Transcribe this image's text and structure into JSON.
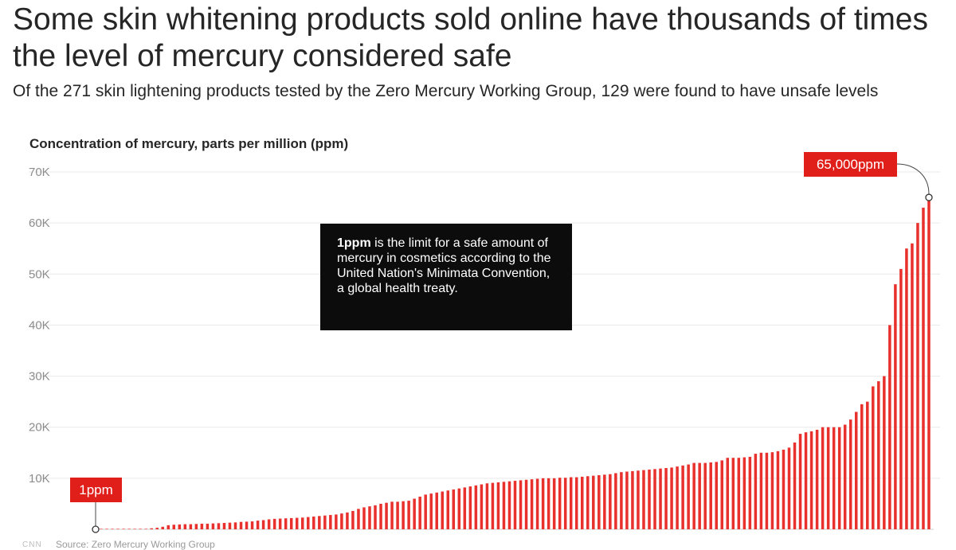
{
  "header": {
    "title": "Some skin whitening products sold online have thousands of times the level of mercury considered safe",
    "subtitle": "Of the 271 skin lightening products tested by the Zero Mercury Working Group, 129 were found to have unsafe levels"
  },
  "footer": {
    "logo": "CNN",
    "source": "Source: Zero Mercury Working Group"
  },
  "colors": {
    "bar": "#e8312d",
    "label_bg": "#e01e1a",
    "grid": "#e9e9e9",
    "tick_text": "#8c8c8c",
    "note_bg": "#0c0c0c"
  },
  "chart_data": {
    "type": "bar",
    "title": "Some skin whitening products sold online have thousands of times the level of mercury considered safe",
    "ylabel": "Concentration of mercury, parts per million (ppm)",
    "xlabel": "",
    "ylim": [
      0,
      70000
    ],
    "yticks": [
      {
        "value": 10000,
        "label": "10K"
      },
      {
        "value": 20000,
        "label": "20K"
      },
      {
        "value": 30000,
        "label": "30K"
      },
      {
        "value": 40000,
        "label": "40K"
      },
      {
        "value": 50000,
        "label": "50K"
      },
      {
        "value": 60000,
        "label": "60K"
      },
      {
        "value": 70000,
        "label": "70K"
      }
    ],
    "grid": true,
    "values": [
      1,
      1,
      1,
      1,
      1,
      1,
      1,
      1,
      1,
      1,
      200,
      300,
      500,
      800,
      900,
      950,
      1000,
      1000,
      1050,
      1100,
      1100,
      1150,
      1200,
      1250,
      1300,
      1350,
      1450,
      1500,
      1550,
      1700,
      1800,
      1950,
      2050,
      2100,
      2150,
      2200,
      2250,
      2300,
      2400,
      2500,
      2600,
      2700,
      2800,
      2900,
      3100,
      3300,
      3600,
      4000,
      4300,
      4500,
      4700,
      5000,
      5200,
      5400,
      5400,
      5500,
      5600,
      6000,
      6400,
      6800,
      7000,
      7200,
      7400,
      7600,
      7800,
      8000,
      8200,
      8400,
      8600,
      8800,
      9000,
      9100,
      9200,
      9300,
      9400,
      9500,
      9600,
      9700,
      9800,
      9900,
      10000,
      10000,
      10000,
      10100,
      10100,
      10200,
      10200,
      10300,
      10400,
      10500,
      10600,
      10700,
      10800,
      11000,
      11200,
      11300,
      11400,
      11500,
      11600,
      11700,
      11800,
      11900,
      12000,
      12100,
      12300,
      12500,
      12700,
      13000,
      13000,
      13000,
      13100,
      13200,
      13500,
      14000,
      14000,
      14000,
      14100,
      14200,
      14800,
      15000,
      15000,
      15100,
      15300,
      15600,
      16000,
      17000,
      18700,
      19000,
      19200,
      19500,
      20000,
      20000,
      20000,
      20000,
      20500,
      21500,
      23000,
      24500,
      25000,
      28000,
      29000,
      30000,
      40000,
      48000,
      51000,
      55000,
      56000,
      60000,
      63000,
      65000
    ],
    "annotations": [
      {
        "label": "1ppm",
        "value": 1,
        "position": "bottom-left"
      },
      {
        "label": "65,000ppm",
        "value": 65000,
        "position": "top-right"
      }
    ],
    "note": {
      "lead": "1ppm",
      "text": " is the limit for a safe amount of mercury in cosmetics according to the United Nation's Minimata Convention, a global health treaty."
    }
  }
}
